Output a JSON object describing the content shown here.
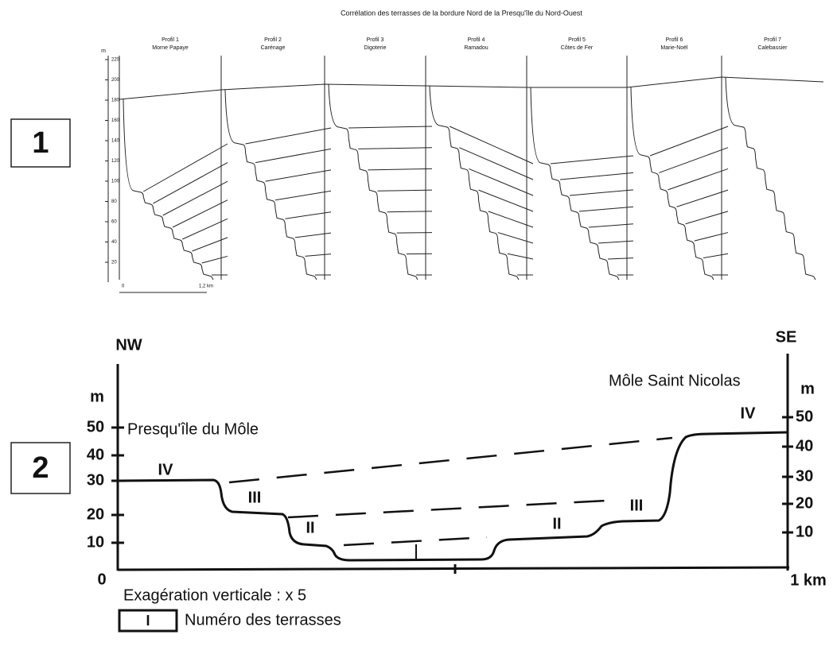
{
  "figure1": {
    "label": "1",
    "title": "Corrélation des terrasses de la bordure Nord de la Presqu'île du Nord-Ouest",
    "profiles": [
      {
        "name": "Profil 1",
        "place": "Morne Papaye"
      },
      {
        "name": "Profil 2",
        "place": "Carénage"
      },
      {
        "name": "Profil 3",
        "place": "Digoterie"
      },
      {
        "name": "Profil 4",
        "place": "Ramadou"
      },
      {
        "name": "Profil 5",
        "place": "Côtes de Fer"
      },
      {
        "name": "Profil 6",
        "place": "Marie-Noël"
      },
      {
        "name": "Profil 7",
        "place": "Calebassier"
      }
    ],
    "axis_unit": "m",
    "axis_ticks": [
      "220",
      "200",
      "180",
      "160",
      "140",
      "120",
      "100",
      "80",
      "60",
      "40",
      "20"
    ],
    "scale_start": "0",
    "scale_end": "1,2 km"
  },
  "figure2": {
    "label": "2",
    "left_dir": "NW",
    "right_dir": "SE",
    "left_unit": "m",
    "right_unit": "m",
    "left_ticks": [
      "50",
      "40",
      "30",
      "20",
      "10",
      "0"
    ],
    "right_ticks": [
      "50",
      "40",
      "30",
      "20",
      "10"
    ],
    "left_place": "Presqu'île du Môle",
    "right_place": "Môle Saint Nicolas",
    "terraces": [
      "IV",
      "III",
      "II",
      "I",
      "II",
      "III",
      "IV"
    ],
    "distance": "1 km",
    "exaggeration": "Exagération verticale : x 5",
    "legend_symbol": "I",
    "legend_text": "Numéro des terrasses"
  }
}
